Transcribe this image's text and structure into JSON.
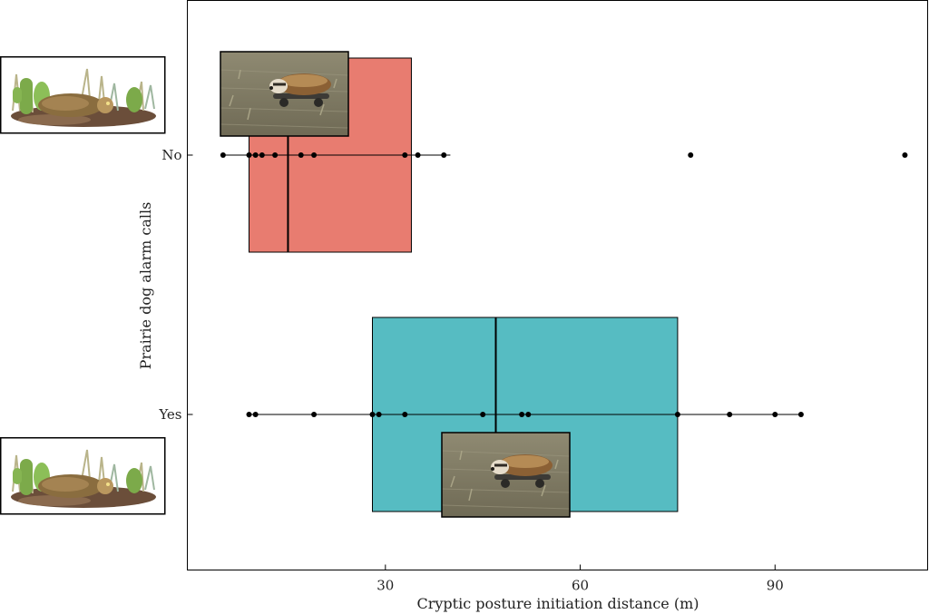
{
  "chart_data": {
    "type": "box",
    "orientation": "horizontal",
    "xlabel": "Cryptic posture initiation distance (m)",
    "ylabel": "Prairie dog alarm calls",
    "xlim": [
      -0.5,
      113.5
    ],
    "xticks": [
      30,
      60,
      90
    ],
    "grid": false,
    "groups": [
      {
        "name": "No",
        "color": "#e87c70",
        "box": {
          "whisker_low": 5,
          "q1": 9,
          "median": 15,
          "q3": 34,
          "whisker_high": 40
        },
        "points": [
          5,
          9,
          10,
          11,
          13,
          17,
          19,
          33,
          35,
          39,
          77,
          110
        ]
      },
      {
        "name": "Yes",
        "color": "#56bcc2",
        "box": {
          "whisker_low": 9,
          "q1": 28,
          "median": 47,
          "q3": 75,
          "whisker_high": 94
        },
        "points": [
          9,
          10,
          19,
          28,
          29,
          33,
          45,
          51,
          52,
          75,
          83,
          90,
          94
        ]
      }
    ]
  }
}
